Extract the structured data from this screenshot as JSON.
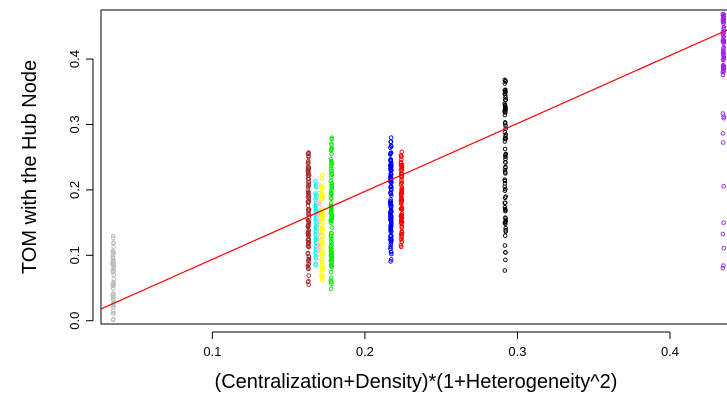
{
  "chart_data": {
    "type": "scatter",
    "title": "",
    "xlabel": "(Centralization+Density)*(1+Heterogeneity^2)",
    "ylabel": "TOM with the Hub Node",
    "xlim": [
      0.027,
      0.44
    ],
    "ylim": [
      -0.005,
      0.475
    ],
    "x_ticks": [
      0.1,
      0.2,
      0.3,
      0.4
    ],
    "x_tick_labels": [
      "0.1",
      "0.2",
      "0.3",
      "0.4"
    ],
    "y_ticks": [
      0.0,
      0.1,
      0.2,
      0.3,
      0.4
    ],
    "y_tick_labels": [
      "0.0",
      "0.1",
      "0.2",
      "0.3",
      "0.4"
    ],
    "grid": false,
    "marker": "open-circle",
    "series": [
      {
        "color": "#bebebe",
        "x": 0.035,
        "y_min": 0.0,
        "y_max": 0.13,
        "n": 70,
        "dist": "dense"
      },
      {
        "color": "#a52a2a",
        "x": 0.163,
        "y_min": 0.045,
        "y_max": 0.27,
        "n": 110,
        "dist": "mid"
      },
      {
        "color": "#00ffff",
        "x": 0.168,
        "y_min": 0.08,
        "y_max": 0.22,
        "n": 60,
        "dist": "mid"
      },
      {
        "color": "#ffc0cb",
        "x": 0.17,
        "y_min": 0.09,
        "y_max": 0.215,
        "n": 40,
        "dist": "mid"
      },
      {
        "color": "#ffff00",
        "x": 0.172,
        "y_min": 0.05,
        "y_max": 0.23,
        "n": 70,
        "dist": "mid"
      },
      {
        "color": "#00ee00",
        "x": 0.178,
        "y_min": 0.045,
        "y_max": 0.29,
        "n": 100,
        "dist": "mid"
      },
      {
        "color": "#0000ff",
        "x": 0.217,
        "y_min": 0.087,
        "y_max": 0.282,
        "n": 120,
        "dist": "mid"
      },
      {
        "color": "#ff0000",
        "x": 0.224,
        "y_min": 0.105,
        "y_max": 0.27,
        "n": 90,
        "dist": "mid"
      },
      {
        "color": "#000000",
        "x": 0.292,
        "y_min": 0.07,
        "y_max": 0.37,
        "n": 80,
        "dist": "upper"
      },
      {
        "color": "#a020f0",
        "x": 0.435,
        "y_min": 0.06,
        "y_max": 0.47,
        "n": 70,
        "dist": "top"
      }
    ],
    "fit_line": {
      "color": "#ff0000",
      "points": [
        [
          0.027,
          0.018
        ],
        [
          0.44,
          0.447
        ]
      ]
    }
  }
}
